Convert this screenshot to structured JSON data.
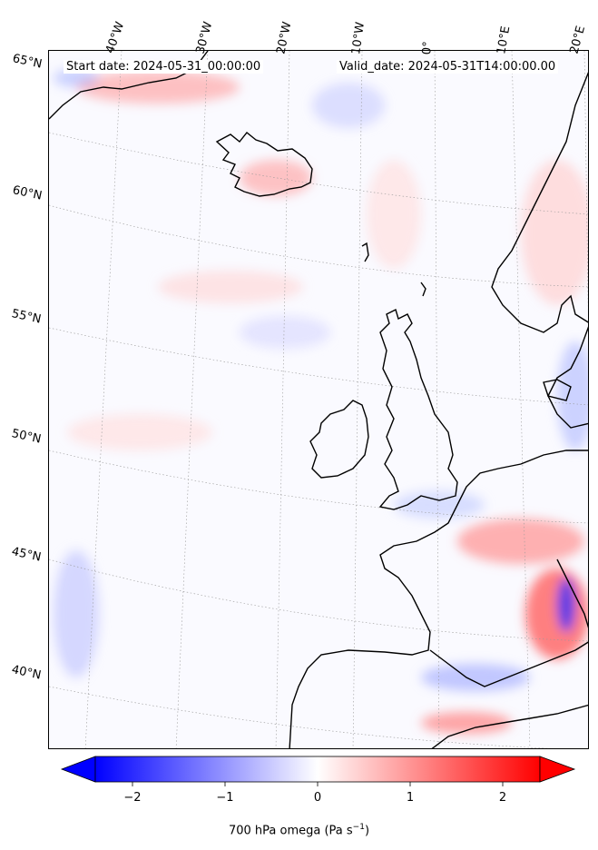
{
  "header": {
    "start_date": "Start date: 2024-05-31_00:00:00",
    "valid_date": "Valid_date: 2024-05-31T14:00:00.00"
  },
  "longitude_labels": [
    "40°W",
    "30°W",
    "20°W",
    "10°W",
    "0°",
    "10°E",
    "20°E"
  ],
  "latitude_labels": [
    "65°N",
    "60°N",
    "55°N",
    "50°N",
    "45°N",
    "40°N"
  ],
  "colorbar": {
    "label": "700 hPa omega (Pa s",
    "label_sup": "−1",
    "label_end": ")",
    "ticks": [
      "−2",
      "−1",
      "0",
      "1",
      "2"
    ],
    "min": -2.6,
    "max": 2.6,
    "colormap": "bwr",
    "extend": "both",
    "colors": {
      "low": "#0000ff",
      "mid": "#ffffff",
      "high": "#ff0000"
    }
  },
  "map": {
    "field": "700 hPa omega",
    "land_outline_color": "#000000",
    "gridline_style": "dotted"
  }
}
